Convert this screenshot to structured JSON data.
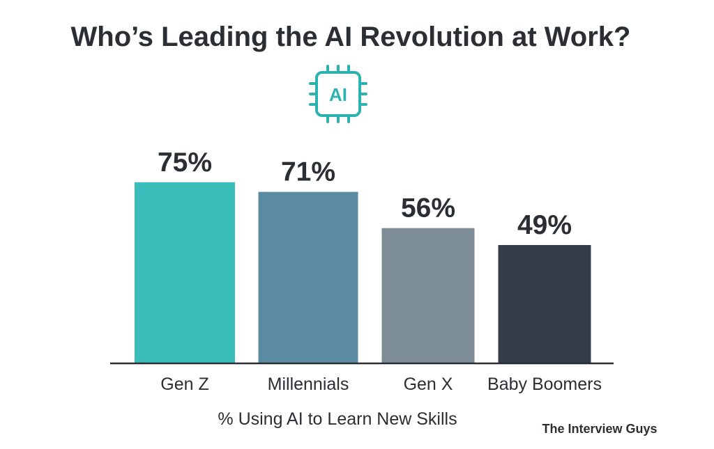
{
  "chart_data": {
    "type": "bar",
    "title": "Who’s Leading the AI Revolution at Work?",
    "categories": [
      "Gen Z",
      "Millennials",
      "Gen X",
      "Baby Boomers"
    ],
    "values": [
      75,
      71,
      56,
      49
    ],
    "value_labels": [
      "75%",
      "71%",
      "56%",
      "49%"
    ],
    "colors": [
      "#3bbdbb",
      "#5b8ba3",
      "#7d8d97",
      "#343c47"
    ],
    "xlabel": "% Using AI to Learn New Skills",
    "ylabel": "",
    "ylim": [
      0,
      100
    ],
    "grid": false,
    "legend": "none"
  },
  "icon": {
    "name": "ai-chip-icon",
    "text": "AI",
    "color": "#2bb2b1"
  },
  "credit": "The Interview Guys"
}
